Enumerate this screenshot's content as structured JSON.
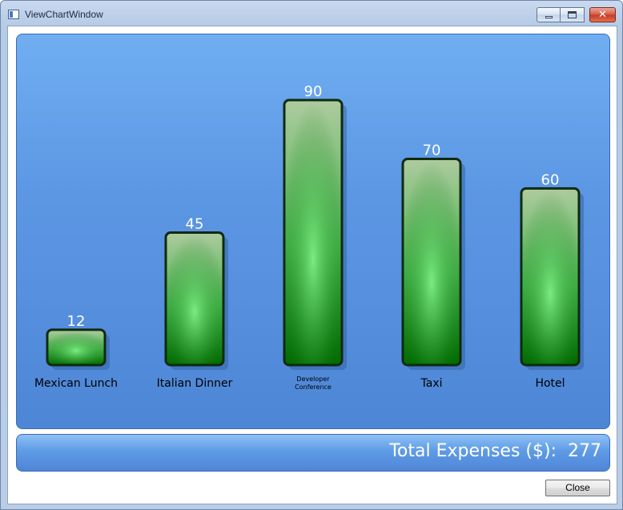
{
  "window": {
    "title": "ViewChartWindow"
  },
  "chart_data": {
    "type": "bar",
    "categories": [
      "Mexican Lunch",
      "Italian Dinner",
      "Developer Conference",
      "Taxi",
      "Hotel"
    ],
    "category_lines": [
      [
        "Mexican Lunch"
      ],
      [
        "Italian Dinner"
      ],
      [
        "Developer",
        "Conference"
      ],
      [
        "Taxi"
      ],
      [
        "Hotel"
      ]
    ],
    "values": [
      12,
      45,
      90,
      70,
      60
    ],
    "title": "",
    "xlabel": "",
    "ylabel": "",
    "ylim": [
      0,
      90
    ],
    "grid": false,
    "legend": "none",
    "colors": {
      "bar_top": "#a8c9a0",
      "bar_mid": "#6fe07a",
      "bar_bottom": "#006400",
      "bar_border": "#0f2a10"
    }
  },
  "summary": {
    "label": "Total Expenses ($):",
    "value": "277"
  },
  "buttons": {
    "close_label": "Close"
  }
}
